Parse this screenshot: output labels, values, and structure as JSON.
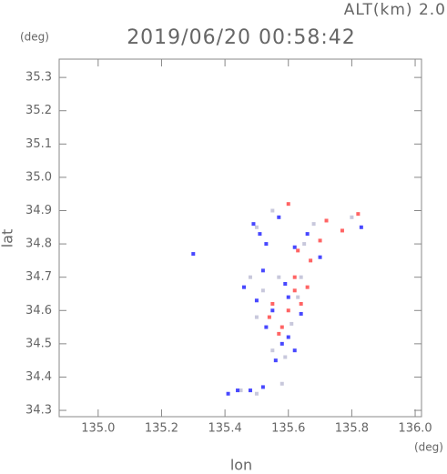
{
  "chart_data": {
    "type": "scatter",
    "title": "2019/06/20 00:58:42",
    "subtitle": "ALT(km) 2.0",
    "x_label": "lon",
    "y_label": "lat",
    "x_unit": "(deg)",
    "y_unit": "(deg)",
    "xlim": [
      134.877,
      136.02
    ],
    "ylim": [
      34.281,
      35.355
    ],
    "xticks": [
      {
        "value": 135,
        "label": "135.0"
      },
      {
        "value": 135.2,
        "label": "135.2"
      },
      {
        "value": 135.4,
        "label": "135.4"
      },
      {
        "value": 135.6,
        "label": "135.6"
      },
      {
        "value": 135.8,
        "label": "135.8"
      },
      {
        "value": 136,
        "label": "136.0"
      }
    ],
    "yticks": [
      34.3,
      34.4,
      34.5,
      34.6,
      34.7,
      34.8,
      34.9,
      {
        "value": 35,
        "label": "35.0"
      },
      35.1,
      35.2,
      35.3
    ],
    "series": [
      {
        "color": "#c8c8dc",
        "x": [
          135.5,
          135.55,
          135.65,
          135.68,
          135.8,
          135.48,
          135.52,
          135.57,
          135.61,
          135.64,
          135.5,
          135.55,
          135.59,
          135.63,
          135.45,
          135.5,
          135.58
        ],
        "values": [
          34.85,
          34.9,
          34.8,
          34.86,
          34.88,
          34.7,
          34.66,
          34.7,
          34.56,
          34.7,
          34.58,
          34.48,
          34.46,
          34.64,
          34.36,
          34.35,
          34.38
        ]
      },
      {
        "color": "#4848ff",
        "x": [
          135.49,
          135.51,
          135.53,
          135.57,
          135.62,
          135.66,
          135.7,
          135.83,
          135.52,
          135.46,
          135.5,
          135.55,
          135.6,
          135.64,
          135.53,
          135.58,
          135.62,
          135.56,
          135.6,
          135.41,
          135.44,
          135.48,
          135.52,
          135.3,
          135.59
        ],
        "values": [
          34.86,
          34.83,
          34.8,
          34.88,
          34.79,
          34.83,
          34.76,
          34.85,
          34.72,
          34.67,
          34.63,
          34.6,
          34.64,
          34.59,
          34.55,
          34.5,
          34.48,
          34.45,
          34.52,
          34.35,
          34.36,
          34.36,
          34.37,
          34.77,
          34.68
        ]
      },
      {
        "color": "#ff6464",
        "x": [
          135.6,
          135.7,
          135.82,
          135.72,
          135.63,
          135.55,
          135.58,
          135.62,
          135.66,
          135.6,
          135.57,
          135.54,
          135.62,
          135.64,
          135.67,
          135.77
        ],
        "values": [
          34.92,
          34.81,
          34.89,
          34.87,
          34.78,
          34.62,
          34.55,
          34.66,
          34.67,
          34.6,
          34.53,
          34.58,
          34.7,
          34.62,
          34.75,
          34.84
        ]
      }
    ]
  }
}
